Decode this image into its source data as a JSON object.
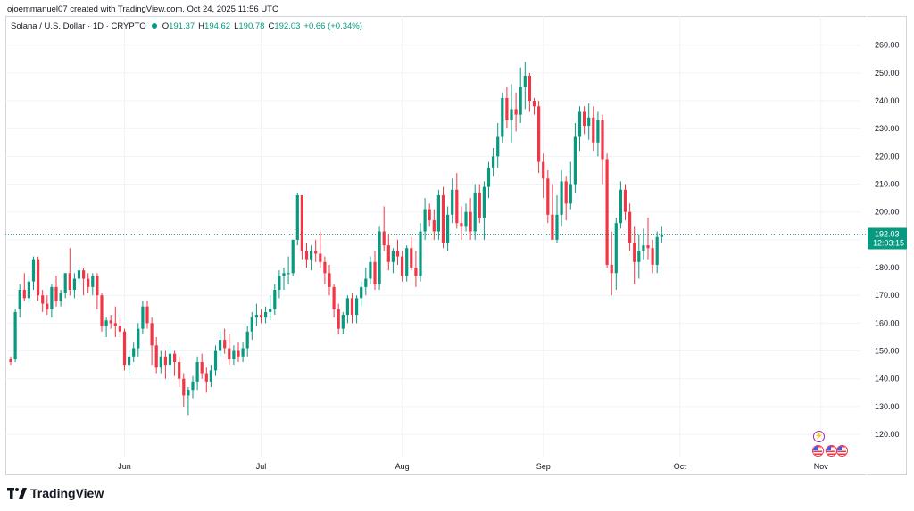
{
  "header": {
    "credit": "ojoemmanuel07 created with TradingView.com, Oct 24, 2025 11:56 UTC"
  },
  "legend": {
    "symbol": "Solana / U.S. Dollar · 1D · CRYPTO",
    "open_label": "O",
    "open": "191.37",
    "high_label": "H",
    "high": "194.62",
    "low_label": "L",
    "low": "190.78",
    "close_label": "C",
    "close": "192.03",
    "change": "+0.66 (+0.34%)"
  },
  "price_tag": {
    "price": "192.03",
    "countdown": "12:03:15"
  },
  "brand": {
    "name": "TradingView"
  },
  "colors": {
    "up": "#089981",
    "down": "#f23645",
    "grid": "#f0f3fa",
    "axis_text": "#131722",
    "line": "#089981"
  },
  "icons": {
    "logo": "tradingview-logo-icon",
    "event": "flash-event-icon",
    "flag": "us-flag-icon"
  },
  "chart_data": {
    "type": "candlestick",
    "title": "Solana / U.S. Dollar · 1D · CRYPTO",
    "ylim": [
      112,
      266
    ],
    "y_ticks": [
      120,
      130,
      140,
      150,
      160,
      170,
      180,
      190,
      200,
      210,
      220,
      230,
      240,
      250,
      260
    ],
    "x_ticks": [
      {
        "label": "Jun",
        "index": 25
      },
      {
        "label": "Jul",
        "index": 55
      },
      {
        "label": "Aug",
        "index": 86
      },
      {
        "label": "Sep",
        "index": 117
      },
      {
        "label": "Oct",
        "index": 147
      },
      {
        "label": "Nov",
        "index": 178
      }
    ],
    "last_close": 192.03,
    "candles": [
      [
        147,
        148,
        145,
        146
      ],
      [
        147,
        165,
        146,
        164
      ],
      [
        165,
        174,
        162,
        172
      ],
      [
        172,
        178,
        168,
        169
      ],
      [
        169,
        177,
        167,
        175
      ],
      [
        175,
        184,
        172,
        183
      ],
      [
        183,
        184,
        168,
        170
      ],
      [
        170,
        172,
        164,
        167
      ],
      [
        167,
        170,
        163,
        165
      ],
      [
        165,
        174,
        162,
        173
      ],
      [
        173,
        177,
        166,
        168
      ],
      [
        168,
        172,
        166,
        171
      ],
      [
        171,
        178,
        169,
        178
      ],
      [
        178,
        187,
        170,
        172
      ],
      [
        172,
        178,
        169,
        176
      ],
      [
        176,
        180,
        174,
        179
      ],
      [
        179,
        180,
        170,
        176
      ],
      [
        176,
        178,
        171,
        173
      ],
      [
        173,
        178,
        170,
        177
      ],
      [
        177,
        178,
        165,
        170
      ],
      [
        170,
        171,
        157,
        159
      ],
      [
        159,
        162,
        155,
        161
      ],
      [
        161,
        163,
        158,
        160
      ],
      [
        160,
        166,
        155,
        159
      ],
      [
        159,
        162,
        155,
        157
      ],
      [
        157,
        158,
        143,
        145
      ],
      [
        145,
        150,
        142,
        148
      ],
      [
        148,
        153,
        146,
        151
      ],
      [
        151,
        160,
        148,
        158
      ],
      [
        158,
        168,
        156,
        166
      ],
      [
        166,
        168,
        158,
        160
      ],
      [
        160,
        162,
        145,
        152
      ],
      [
        152,
        155,
        142,
        144
      ],
      [
        144,
        150,
        142,
        148
      ],
      [
        148,
        150,
        140,
        145
      ],
      [
        145,
        152,
        142,
        149
      ],
      [
        149,
        150,
        141,
        146
      ],
      [
        146,
        148,
        137,
        140
      ],
      [
        140,
        142,
        130,
        134
      ],
      [
        134,
        137,
        127,
        136
      ],
      [
        136,
        141,
        133,
        139
      ],
      [
        139,
        148,
        136,
        146
      ],
      [
        146,
        149,
        140,
        142
      ],
      [
        142,
        144,
        135,
        139
      ],
      [
        139,
        145,
        137,
        143
      ],
      [
        143,
        152,
        141,
        150
      ],
      [
        150,
        157,
        148,
        154
      ],
      [
        154,
        158,
        149,
        151
      ],
      [
        151,
        156,
        145,
        147
      ],
      [
        147,
        152,
        145,
        150
      ],
      [
        150,
        153,
        146,
        148
      ],
      [
        148,
        153,
        146,
        151
      ],
      [
        151,
        159,
        148,
        157
      ],
      [
        157,
        164,
        154,
        162
      ],
      [
        162,
        167,
        159,
        163
      ],
      [
        163,
        165,
        160,
        162
      ],
      [
        162,
        166,
        160,
        164
      ],
      [
        164,
        170,
        161,
        165
      ],
      [
        165,
        174,
        163,
        172
      ],
      [
        172,
        179,
        169,
        177
      ],
      [
        177,
        180,
        172,
        178
      ],
      [
        178,
        184,
        174,
        178
      ],
      [
        178,
        190,
        177,
        190
      ],
      [
        190,
        207,
        188,
        206
      ],
      [
        206,
        206,
        183,
        186
      ],
      [
        186,
        189,
        180,
        183
      ],
      [
        183,
        188,
        179,
        186
      ],
      [
        186,
        190,
        182,
        185
      ],
      [
        185,
        193,
        180,
        182
      ],
      [
        182,
        184,
        174,
        178
      ],
      [
        178,
        181,
        170,
        173
      ],
      [
        173,
        174,
        162,
        165
      ],
      [
        165,
        167,
        156,
        158
      ],
      [
        158,
        164,
        156,
        163
      ],
      [
        163,
        170,
        160,
        169
      ],
      [
        169,
        171,
        160,
        163
      ],
      [
        163,
        170,
        160,
        169
      ],
      [
        169,
        175,
        166,
        173
      ],
      [
        173,
        180,
        170,
        176
      ],
      [
        176,
        184,
        174,
        182
      ],
      [
        182,
        186,
        172,
        174
      ],
      [
        174,
        195,
        172,
        193
      ],
      [
        193,
        202,
        186,
        188
      ],
      [
        188,
        192,
        179,
        182
      ],
      [
        182,
        187,
        178,
        186
      ],
      [
        186,
        190,
        181,
        184
      ],
      [
        184,
        186,
        175,
        177
      ],
      [
        177,
        188,
        175,
        187
      ],
      [
        187,
        191,
        179,
        180
      ],
      [
        180,
        186,
        173,
        177
      ],
      [
        177,
        196,
        175,
        193
      ],
      [
        193,
        205,
        190,
        201
      ],
      [
        201,
        203,
        195,
        197
      ],
      [
        197,
        201,
        190,
        193
      ],
      [
        193,
        208,
        190,
        206
      ],
      [
        206,
        209,
        187,
        189
      ],
      [
        189,
        202,
        186,
        199
      ],
      [
        199,
        212,
        196,
        208
      ],
      [
        208,
        214,
        194,
        196
      ],
      [
        196,
        202,
        190,
        195
      ],
      [
        195,
        203,
        193,
        200
      ],
      [
        200,
        205,
        190,
        193
      ],
      [
        193,
        210,
        190,
        207
      ],
      [
        207,
        210,
        196,
        198
      ],
      [
        198,
        211,
        190,
        209
      ],
      [
        209,
        218,
        205,
        216
      ],
      [
        216,
        223,
        213,
        220
      ],
      [
        220,
        232,
        216,
        227
      ],
      [
        227,
        243,
        225,
        241
      ],
      [
        241,
        245,
        230,
        233
      ],
      [
        233,
        246,
        225,
        237
      ],
      [
        237,
        243,
        229,
        235
      ],
      [
        235,
        252,
        232,
        245
      ],
      [
        245,
        254,
        237,
        249
      ],
      [
        249,
        250,
        236,
        240
      ],
      [
        240,
        241,
        235,
        238
      ],
      [
        238,
        240,
        214,
        218
      ],
      [
        218,
        221,
        205,
        212
      ],
      [
        212,
        215,
        196,
        199
      ],
      [
        199,
        210,
        190,
        190
      ],
      [
        190,
        206,
        189,
        199
      ],
      [
        199,
        215,
        195,
        211
      ],
      [
        211,
        213,
        197,
        203
      ],
      [
        203,
        218,
        201,
        210
      ],
      [
        210,
        232,
        207,
        227
      ],
      [
        227,
        238,
        222,
        236
      ],
      [
        236,
        238,
        228,
        231
      ],
      [
        231,
        239,
        226,
        234
      ],
      [
        234,
        238,
        222,
        225
      ],
      [
        225,
        236,
        220,
        233
      ],
      [
        233,
        235,
        210,
        219
      ],
      [
        219,
        221,
        180,
        181
      ],
      [
        181,
        193,
        170,
        178
      ],
      [
        178,
        198,
        172,
        196
      ],
      [
        196,
        211,
        194,
        208
      ],
      [
        208,
        210,
        197,
        200
      ],
      [
        200,
        203,
        186,
        189
      ],
      [
        189,
        195,
        174,
        182
      ],
      [
        182,
        192,
        176,
        186
      ],
      [
        186,
        194,
        183,
        188
      ],
      [
        188,
        198,
        183,
        187
      ],
      [
        187,
        190,
        178,
        181
      ],
      [
        181,
        193,
        178,
        191
      ],
      [
        191,
        195,
        189,
        192
      ]
    ]
  }
}
